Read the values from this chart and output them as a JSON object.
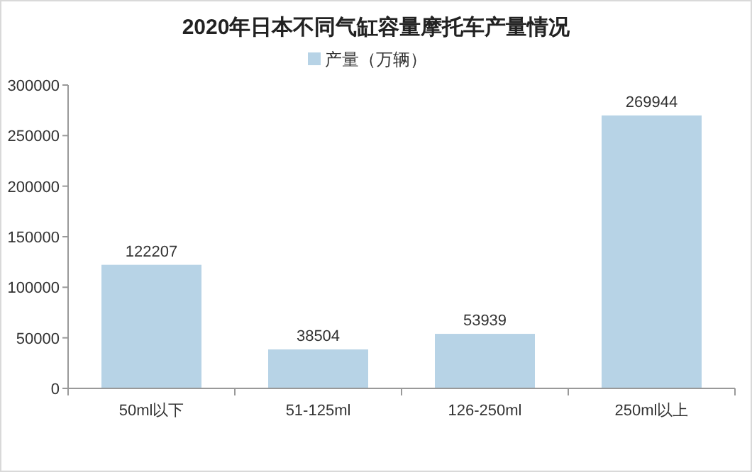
{
  "chart_data": {
    "type": "bar",
    "title": "2020年日本不同气缸容量摩托车产量情况",
    "categories": [
      "50ml以下",
      "51-125ml",
      "126-250ml",
      "250ml以上"
    ],
    "series": [
      {
        "name": "产量（万辆）",
        "color": "#b7d3e6",
        "values": [
          122207,
          38504,
          53939,
          269944
        ]
      }
    ],
    "ylim": [
      0,
      300000
    ],
    "yticks": [
      0,
      50000,
      100000,
      150000,
      200000,
      250000,
      300000
    ],
    "grid": false,
    "legend": "top",
    "data_labels": true
  }
}
